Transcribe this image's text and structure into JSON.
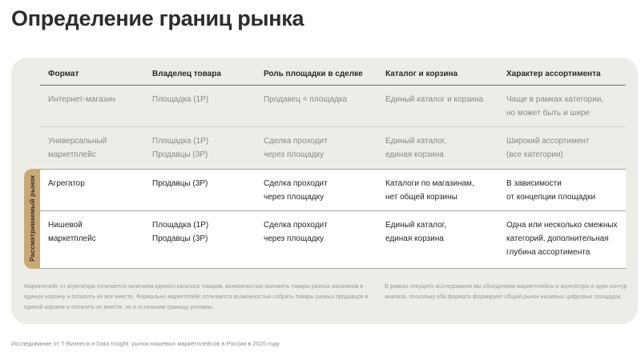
{
  "page": {
    "title": "Определение границ рынка"
  },
  "table": {
    "headers": [
      "Формат",
      "Владелец товара",
      "Роль площадки в сделке",
      "Каталог и корзина",
      "Характер ассортимента"
    ],
    "rows": [
      {
        "format": "Интернет-магазин",
        "owner": "Площадка (1P)",
        "role": "Продавец = площадка",
        "catalog": "Единый каталог и корзина",
        "assortment": "Чаще в рамках категории,\nно может быть и шире"
      },
      {
        "format": "Универсальный\nмаркетплейс",
        "owner": "Площадка (1P)\nПродавцы (3P)",
        "role": "Сделка проходит\nчерез площадку",
        "catalog": "Единый каталог,\nединая корзина",
        "assortment": "Широкий ассортимент\n(все категории)"
      },
      {
        "format": "Агрегатор",
        "owner": "Продавцы (3P)",
        "role": "Сделка проходит\nчерез площадку",
        "catalog": "Каталоги по магазинам,\nнет общей корзины",
        "assortment": "В зависимости\nот концепции площадки"
      },
      {
        "format": "Нишевой\nмаркетплейс",
        "owner": "Площадка (1P)\nПродавцы (3P)",
        "role": "Сделка проходит\nчерез площадку",
        "catalog": "Единый каталог,\nединая корзина",
        "assortment": "Одна или несколько смежных\nкатегорий, дополнительная\nглубина ассортимента"
      }
    ],
    "highlight_label": "Рассматриваемый рынок"
  },
  "notes": {
    "left": "Маркетплейс от агрегатора отличается наличием единого каталога товаров, возможностью положить товары разных магазинов в единую корзину и оплатить их все вместе. Формально маркетплейс отличается возможностью собрать товары разных продавцов в единой корзине и оплатить их вместе, но в остальном границы условны.",
    "right": "В рамках текущего исследования мы объединяем маркетплейсы и агрегаторы в один контур анализа, поскольку оба формата формируют общий рынок нишевых цифровых площадок."
  },
  "footer": {
    "source": "Исследование от Т-Бизнеса и Data Insight: рынок нишевых маркетплейсов в России в 2025 году"
  },
  "colors": {
    "card_bg": "#eeece7",
    "highlight_tab": "#c9a878",
    "highlight_bg": "#ffffff",
    "muted_text": "#8a8884"
  }
}
